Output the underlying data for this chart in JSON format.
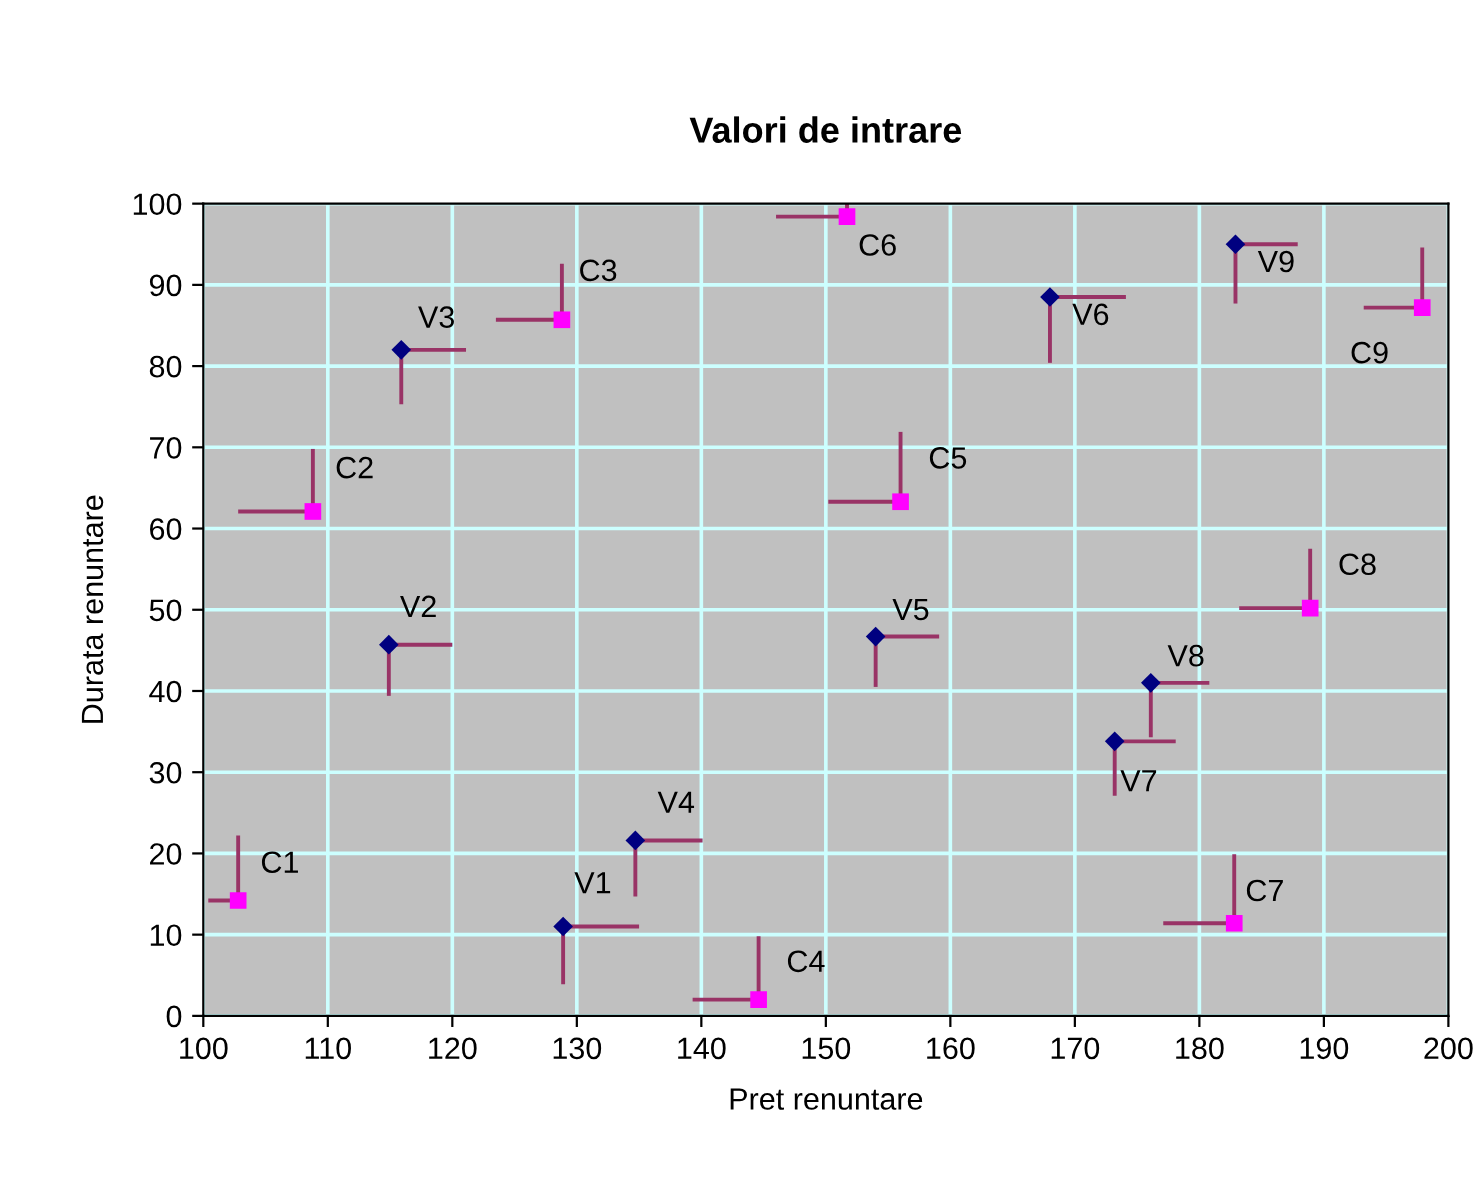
{
  "chart_data": {
    "type": "scatter",
    "title": "Valori de intrare",
    "xlabel": "Pret renuntare",
    "ylabel": "Durata renuntare",
    "xlim": [
      100,
      200
    ],
    "xticks": [
      100,
      110,
      120,
      130,
      140,
      150,
      160,
      170,
      180,
      190,
      200
    ],
    "ylim": [
      0,
      100
    ],
    "yticks": [
      0,
      10,
      20,
      30,
      40,
      50,
      60,
      70,
      80,
      90,
      100
    ],
    "grid": true,
    "legend": false,
    "series": [
      {
        "color": "#000080",
        "marker": "diamond",
        "x": [
          128.9,
          114.9,
          115.9,
          134.7,
          154.0,
          168.0,
          173.2,
          176.1,
          182.9
        ],
        "values": [
          11.0,
          45.7,
          82.0,
          21.6,
          46.7,
          88.5,
          33.8,
          41.0,
          95.0
        ],
        "errors": [
          [
            3.9,
            11.0
          ],
          [
            39.4,
            45.7
          ],
          [
            75.3,
            82.0
          ],
          [
            14.7,
            21.6
          ],
          [
            40.5,
            46.7
          ],
          [
            80.4,
            88.5
          ],
          [
            27.1,
            33.8
          ],
          [
            34.3,
            41.0
          ],
          [
            87.7,
            95.0
          ]
        ],
        "xerrors": [
          [
            128.9,
            135.0
          ],
          [
            114.9,
            120.0
          ],
          [
            115.9,
            121.1
          ],
          [
            134.7,
            140.1
          ],
          [
            154.0,
            159.1
          ],
          [
            168.0,
            174.1
          ],
          [
            173.2,
            178.1
          ],
          [
            176.1,
            180.8
          ],
          [
            182.9,
            187.9
          ]
        ]
      },
      {
        "color": "#ff00ff",
        "marker": "square",
        "x": [
          102.8,
          108.8,
          128.8,
          144.6,
          156.0,
          151.7,
          182.8,
          188.9,
          197.9
        ],
        "values": [
          14.2,
          62.1,
          85.7,
          2.0,
          63.3,
          98.4,
          11.4,
          50.2,
          87.2
        ],
        "errors": [
          [
            14.2,
            22.2
          ],
          [
            62.1,
            69.8
          ],
          [
            85.7,
            92.6
          ],
          [
            2.0,
            9.8
          ],
          [
            63.3,
            71.9
          ],
          [
            98.4,
            100
          ],
          [
            11.4,
            19.9
          ],
          [
            50.2,
            57.5
          ],
          [
            87.2,
            94.6
          ]
        ],
        "xerrors": [
          [
            100.4,
            102.8
          ],
          [
            102.8,
            108.8
          ],
          [
            123.5,
            128.8
          ],
          [
            139.3,
            144.6
          ],
          [
            150.2,
            156.0
          ],
          [
            146.0,
            151.7
          ],
          [
            177.1,
            182.8
          ],
          [
            183.2,
            188.9
          ],
          [
            193.2,
            197.9
          ]
        ]
      }
    ],
    "annotations": [
      {
        "text": "V1",
        "x": 128.9,
        "y": 11.0
      },
      {
        "text": "V2",
        "x": 114.9,
        "y": 45.7
      },
      {
        "text": "V3",
        "x": 115.9,
        "y": 82.0
      },
      {
        "text": "V4",
        "x": 134.7,
        "y": 21.6
      },
      {
        "text": "V5",
        "x": 154.0,
        "y": 46.7
      },
      {
        "text": "V6",
        "x": 168.0,
        "y": 88.5
      },
      {
        "text": "V7",
        "x": 173.2,
        "y": 33.8
      },
      {
        "text": "V8",
        "x": 176.1,
        "y": 41.0
      },
      {
        "text": "V9",
        "x": 182.9,
        "y": 95.0
      },
      {
        "text": "C1",
        "x": 102.8,
        "y": 14.2
      },
      {
        "text": "C2",
        "x": 108.8,
        "y": 62.1
      },
      {
        "text": "C3",
        "x": 128.8,
        "y": 85.7
      },
      {
        "text": "C4",
        "x": 144.6,
        "y": 2.0
      },
      {
        "text": "C5",
        "x": 156.0,
        "y": 63.3
      },
      {
        "text": "C6",
        "x": 151.7,
        "y": 98.4
      },
      {
        "text": "C7",
        "x": 182.8,
        "y": 11.4
      },
      {
        "text": "C8",
        "x": 188.9,
        "y": 50.2
      },
      {
        "text": "C9",
        "x": 197.9,
        "y": 87.2
      }
    ]
  }
}
